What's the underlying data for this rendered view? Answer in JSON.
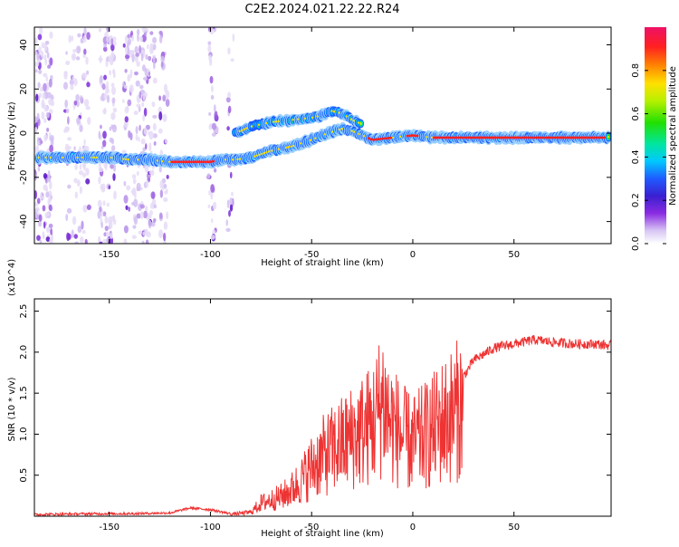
{
  "figure": {
    "title": "C2E2.2024.021.22.22.R24"
  },
  "chart_data": [
    {
      "type": "heatmap",
      "xlabel": "Height of straight line (km)",
      "ylabel": "Frequency (Hz)",
      "xlim": [
        -187,
        98
      ],
      "ylim": [
        -50,
        48
      ],
      "xticks": [
        -150,
        -100,
        -50,
        0,
        50
      ],
      "xtick_labels": [
        "-150",
        "-100",
        "-50",
        "0",
        "50"
      ],
      "yticks": [
        -40,
        -20,
        0,
        20,
        40
      ],
      "ytick_labels": [
        "-40",
        "-20",
        "0",
        "20",
        "40"
      ],
      "colorbar": {
        "label": "Normalized spectral amplitude",
        "range": [
          0.0,
          1.0
        ],
        "ticks": [
          0.0,
          0.2,
          0.4,
          0.6,
          0.8
        ],
        "tick_labels": [
          "0.0",
          "0.2",
          "0.4",
          "0.6",
          "0.8"
        ]
      },
      "ridges": [
        {
          "name": "lower-trace",
          "x": [
            -185,
            -170,
            -150,
            -140,
            -130,
            -122,
            -110,
            -100,
            -95,
            -88,
            -80,
            -70,
            -60,
            -50,
            -42,
            -35,
            -30,
            -25,
            -20,
            -10,
            0,
            10,
            30,
            50,
            70,
            90,
            97
          ],
          "y": [
            -11,
            -11,
            -11,
            -12,
            -12,
            -13,
            -13,
            -13,
            -12,
            -12,
            -11,
            -8,
            -6,
            -3,
            0,
            2,
            1,
            -1,
            -3,
            -2,
            -1,
            -2,
            -2,
            -2,
            -2,
            -2,
            -2
          ]
        },
        {
          "name": "upper-trace",
          "x": [
            -88,
            -80,
            -70,
            -60,
            -50,
            -45,
            -40,
            -35,
            -30,
            -25
          ],
          "y": [
            0,
            3,
            5,
            6,
            7,
            8,
            10,
            9,
            6,
            4
          ]
        }
      ]
    },
    {
      "type": "line",
      "xlabel": "Height of straight line (km)",
      "ylabel": "SNR (10 * v/v)",
      "y_multiplier": "(x10^4)",
      "xlim": [
        -187,
        98
      ],
      "ylim": [
        0,
        2.65
      ],
      "xticks": [
        -150,
        -100,
        -50,
        0,
        50
      ],
      "xtick_labels": [
        "-150",
        "-100",
        "-50",
        "0",
        "50"
      ],
      "yticks": [
        0.5,
        1.0,
        1.5,
        2.0,
        2.5
      ],
      "ytick_labels": [
        "0.5",
        "1.0",
        "1.5",
        "2.0",
        "2.5"
      ],
      "series": [
        {
          "name": "SNR",
          "color": "#ee3333",
          "envelope_x": [
            -187,
            -160,
            -140,
            -120,
            -110,
            -100,
            -90,
            -80,
            -75,
            -70,
            -65,
            -60,
            -55,
            -50,
            -45,
            -40,
            -35,
            -30,
            -25,
            -20,
            -17,
            -15,
            -12,
            -10,
            -5,
            0,
            5,
            10,
            15,
            20,
            25,
            30,
            40,
            50,
            60,
            70,
            80,
            90,
            98
          ],
          "envelope_y": [
            0.02,
            0.03,
            0.03,
            0.04,
            0.1,
            0.08,
            0.03,
            0.06,
            0.2,
            0.25,
            0.3,
            0.4,
            0.55,
            0.75,
            0.9,
            1.0,
            1.1,
            1.2,
            1.3,
            1.4,
            1.6,
            1.8,
            1.5,
            1.4,
            1.2,
            1.1,
            1.2,
            1.3,
            1.45,
            1.55,
            1.7,
            1.9,
            2.05,
            2.1,
            2.15,
            2.12,
            2.1,
            2.1,
            2.08
          ]
        }
      ]
    }
  ]
}
